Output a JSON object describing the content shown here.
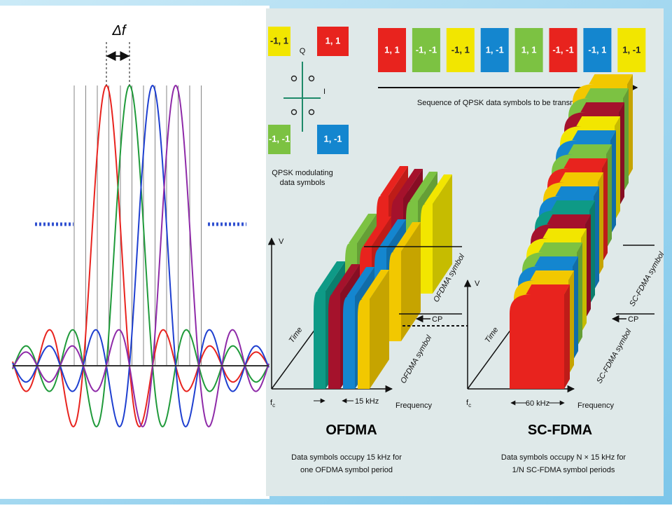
{
  "left_panel": {
    "delta_label": "Δf"
  },
  "constellation": {
    "axis_q": "Q",
    "axis_i": "I",
    "symbols": [
      {
        "label": "-1, 1",
        "color": "#f2e600"
      },
      {
        "label": "1, 1",
        "color": "#e8231e"
      },
      {
        "label": "-1, -1",
        "color": "#7cc242"
      },
      {
        "label": "1, -1",
        "color": "#1486cf"
      }
    ],
    "caption": [
      "QPSK modulating",
      "data symbols"
    ]
  },
  "sequence": {
    "symbols": [
      {
        "label": "1, 1",
        "color": "#e8231e"
      },
      {
        "label": "-1, -1",
        "color": "#7cc242"
      },
      {
        "label": "-1, 1",
        "color": "#f2e600"
      },
      {
        "label": "1, -1",
        "color": "#1486cf"
      },
      {
        "label": "1, 1",
        "color": "#7cc242"
      },
      {
        "label": "-1, -1",
        "color": "#e8231e"
      },
      {
        "label": "-1, 1",
        "color": "#1486cf"
      },
      {
        "label": "1, -1",
        "color": "#f2e600"
      }
    ],
    "caption": "Sequence of QPSK data symbols to be transmitted"
  },
  "ofdma": {
    "v_axis": "V",
    "time_axis": "Time",
    "freq_axis": "Frequency",
    "origin": "f",
    "origin_sub": "c",
    "symbol_top": "OFDMA symbol",
    "cp": "CP",
    "symbol_bottom": "OFDMA symbol",
    "bandwidth": "15 kHz",
    "title": "OFDMA",
    "description": [
      "Data symbols occupy 15 kHz for",
      "one OFDMA symbol period"
    ]
  },
  "scfdma": {
    "v_axis": "V",
    "time_axis": "Time",
    "freq_axis": "Frequency",
    "origin": "f",
    "origin_sub": "c",
    "symbol_top": "SC-FDMA symbol",
    "cp": "CP",
    "symbol_bottom": "SC-FDMA symbol",
    "bandwidth": "60 kHz",
    "title": "SC-FDMA",
    "description": [
      "Data symbols occupy N × 15 kHz for",
      "1/N SC-FDMA symbol periods"
    ]
  }
}
